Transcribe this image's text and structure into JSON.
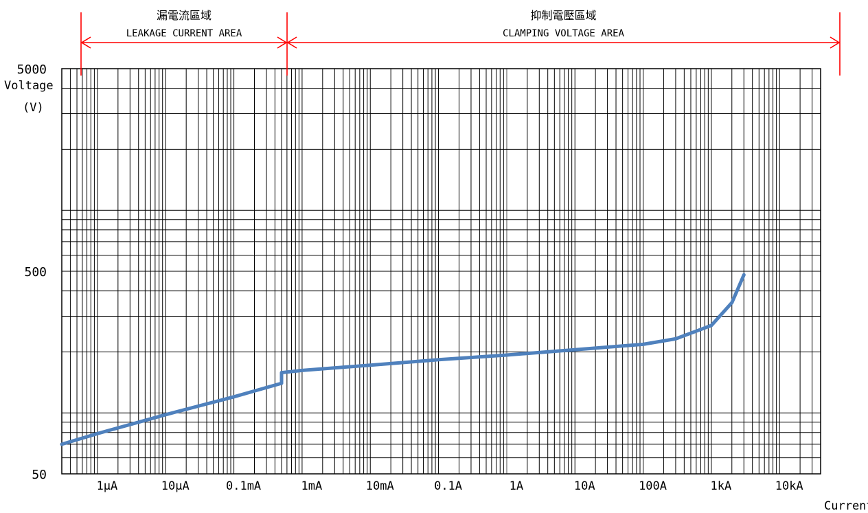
{
  "chart_data": {
    "type": "line",
    "ylabel_line1": "Voltage",
    "ylabel_line2": "(V)",
    "xlabel": "Current",
    "yscale": "log",
    "xscale": "log",
    "ylim": [
      50,
      5000
    ],
    "xlim_A": [
      3e-07,
      40000
    ],
    "grid": true,
    "y_ticks": [
      {
        "value": 5000,
        "label": "5000"
      },
      {
        "value": 500,
        "label": "500"
      },
      {
        "value": 50,
        "label": "50"
      }
    ],
    "x_ticks": [
      {
        "value": 1e-06,
        "label": "1μA"
      },
      {
        "value": 1e-05,
        "label": "10μA"
      },
      {
        "value": 0.0001,
        "label": "0.1mA"
      },
      {
        "value": 0.001,
        "label": "1mA"
      },
      {
        "value": 0.01,
        "label": "10mA"
      },
      {
        "value": 0.1,
        "label": "0.1A"
      },
      {
        "value": 1,
        "label": "1A"
      },
      {
        "value": 10,
        "label": "10A"
      },
      {
        "value": 100,
        "label": "100A"
      },
      {
        "value": 1000,
        "label": "1kA"
      },
      {
        "value": 10000,
        "label": "10kA"
      }
    ],
    "regions": [
      {
        "title_zh": "漏電流區域",
        "title_en": "LEAKAGE CURRENT AREA",
        "from_A": 1e-06,
        "to_A": 0.001
      },
      {
        "title_zh": "抑制電壓區域",
        "title_en": "CLAMPING VOLTAGE AREA",
        "from_A": 0.001,
        "to_A": 40000
      }
    ],
    "region_color": "#ff0000",
    "line_color": "#4f81bd",
    "series": [
      {
        "values": [
          {
            "x": 3e-07,
            "y": 70
          },
          {
            "x": 1e-06,
            "y": 79
          },
          {
            "x": 1e-05,
            "y": 98
          },
          {
            "x": 0.0001,
            "y": 120
          },
          {
            "x": 0.0005,
            "y": 140
          },
          {
            "x": 0.0005,
            "y": 158
          },
          {
            "x": 0.001,
            "y": 162
          },
          {
            "x": 0.01,
            "y": 172
          },
          {
            "x": 0.1,
            "y": 183
          },
          {
            "x": 1,
            "y": 193
          },
          {
            "x": 10,
            "y": 205
          },
          {
            "x": 100,
            "y": 218
          },
          {
            "x": 300,
            "y": 232
          },
          {
            "x": 1000,
            "y": 270
          },
          {
            "x": 2000,
            "y": 350
          },
          {
            "x": 3000,
            "y": 480
          }
        ]
      }
    ]
  }
}
